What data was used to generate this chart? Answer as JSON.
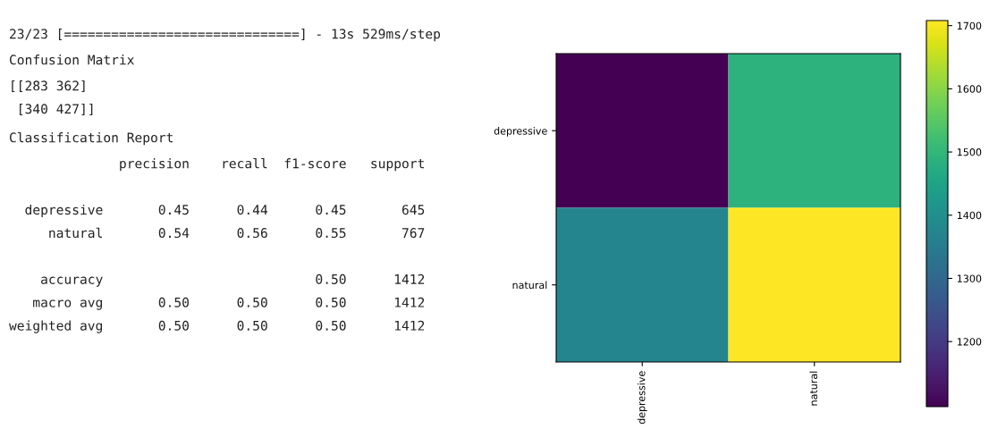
{
  "chart_data": [
    {
      "type": "other",
      "annotations": [
        "23/23 [==============================] - 13s 529ms/step",
        "Confusion Matrix",
        "[[283 362]\n [340 427]]",
        "Classification Report",
        "              precision    recall  f1-score   support\n\n  depressive       0.45      0.44      0.45       645\n     natural       0.54      0.56      0.55       767\n\n    accuracy                           0.50      1412\n   macro avg       0.50      0.50      0.50      1412\nweighted avg       0.50      0.50      0.50      1412"
      ]
    },
    {
      "type": "heatmap",
      "categories": [
        "depressive",
        "natural"
      ],
      "y_categories": [
        "depressive",
        "natural"
      ],
      "cells": [
        [
          1097,
          1490
        ],
        [
          1375,
          1708
        ]
      ],
      "clim": [
        1097,
        1708
      ],
      "cticks": [
        1200,
        1300,
        1400,
        1500,
        1600,
        1700
      ]
    }
  ]
}
